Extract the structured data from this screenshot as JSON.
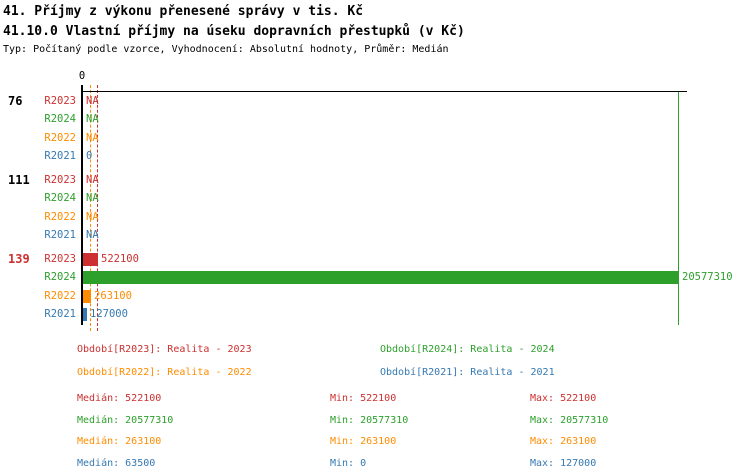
{
  "header": {
    "title1": "41. Příjmy z výkonu přenesené správy v tis. Kč",
    "title2": "41.10.0 Vlastní příjmy na úseku dopravních přestupků (v Kč)",
    "subtitle": "Typ: Počítaný podle vzorce, Vyhodnocení: Absolutní hodnoty, Průměr: Medián"
  },
  "colors": {
    "R2023": "#cc3030",
    "R2024": "#2da02c",
    "R2022": "#ff8c00",
    "R2021": "#3579b1",
    "axis": "#000000",
    "background": "#ffffff"
  },
  "chart_data": {
    "type": "bar",
    "orientation": "horizontal",
    "title": "41.10.0 Vlastní příjmy na úseku dopravních přestupků (v Kč)",
    "value_axis": {
      "min": 0,
      "max": 20577310,
      "zero_tick_label": "0"
    },
    "series_order": [
      "R2023",
      "R2024",
      "R2022",
      "R2021"
    ],
    "groups": [
      {
        "label": "76",
        "highlight": false,
        "rows": [
          {
            "series": "R2023",
            "value": null,
            "display": "NA"
          },
          {
            "series": "R2024",
            "value": null,
            "display": "NA"
          },
          {
            "series": "R2022",
            "value": null,
            "display": "NA"
          },
          {
            "series": "R2021",
            "value": 0,
            "display": "0"
          }
        ]
      },
      {
        "label": "111",
        "highlight": false,
        "rows": [
          {
            "series": "R2023",
            "value": null,
            "display": "NA"
          },
          {
            "series": "R2024",
            "value": null,
            "display": "NA"
          },
          {
            "series": "R2022",
            "value": null,
            "display": "NA"
          },
          {
            "series": "R2021",
            "value": null,
            "display": "NA"
          }
        ]
      },
      {
        "label": "139",
        "highlight": true,
        "rows": [
          {
            "series": "R2023",
            "value": 522100,
            "display": "522100"
          },
          {
            "series": "R2024",
            "value": 20577310,
            "display": "20577310"
          },
          {
            "series": "R2022",
            "value": 263100,
            "display": "263100"
          },
          {
            "series": "R2021",
            "value": 127000,
            "display": "127000"
          }
        ]
      }
    ],
    "guides": [
      {
        "series": "R2022",
        "value": 263100,
        "style": "dashed"
      },
      {
        "series": "R2023",
        "value": 522100,
        "style": "dashed"
      },
      {
        "series": "R2024",
        "value": 20577310,
        "style": "solid"
      }
    ]
  },
  "legend": {
    "items": [
      {
        "series": "R2023",
        "label": "Období[R2023]: Realita - 2023"
      },
      {
        "series": "R2024",
        "label": "Období[R2024]: Realita - 2024"
      },
      {
        "series": "R2022",
        "label": "Období[R2022]: Realita - 2022"
      },
      {
        "series": "R2021",
        "label": "Období[R2021]: Realita - 2021"
      }
    ]
  },
  "stats": {
    "label_median": "Medián",
    "label_min": "Min",
    "label_max": "Max",
    "rows": [
      {
        "series": "R2023",
        "median": "522100",
        "min": "522100",
        "max": "522100"
      },
      {
        "series": "R2024",
        "median": "20577310",
        "min": "20577310",
        "max": "20577310"
      },
      {
        "series": "R2022",
        "median": "263100",
        "min": "263100",
        "max": "263100"
      },
      {
        "series": "R2021",
        "median": "63500",
        "min": "0",
        "max": "127000"
      }
    ]
  }
}
